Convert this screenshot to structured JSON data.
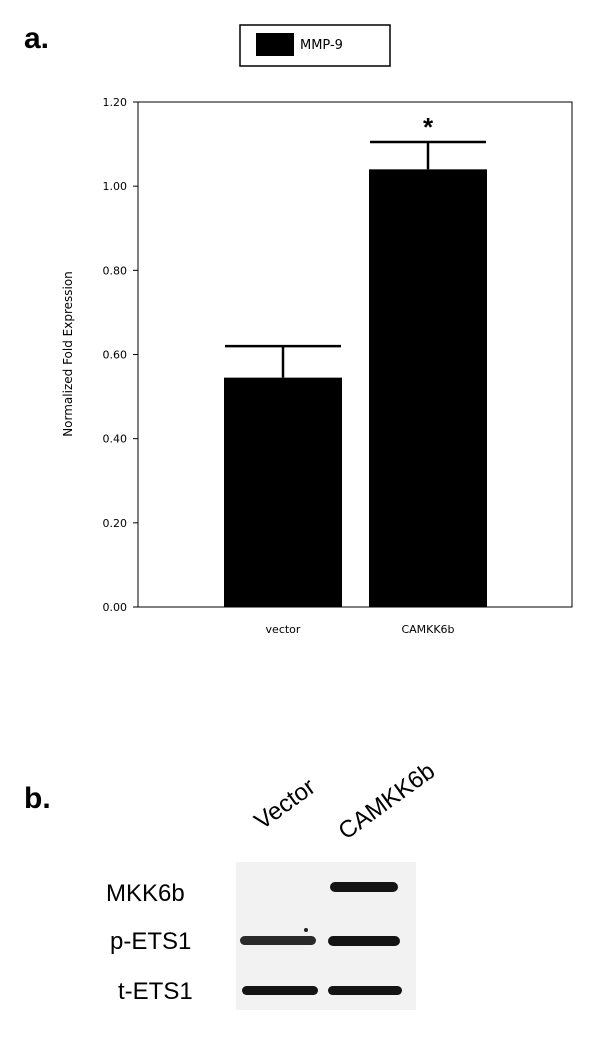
{
  "panel_a_label": "a.",
  "panel_b_label": "b.",
  "chart_data": {
    "type": "bar",
    "categories": [
      "vector",
      "CAMKK6b"
    ],
    "series": [
      {
        "name": "MMP-9",
        "values": [
          0.545,
          1.04
        ],
        "error": [
          0.075,
          0.065
        ],
        "color": "#000000"
      }
    ],
    "ylabel": "Normalized Fold Expression",
    "xlabel": "",
    "ylim": [
      0,
      1.2
    ],
    "yticks": [
      "0.00",
      "0.20",
      "0.40",
      "0.60",
      "0.80",
      "1.00",
      "1.20"
    ],
    "annotations": [
      {
        "category": "CAMKK6b",
        "text": "*"
      }
    ],
    "legend": {
      "placement": "top",
      "labels": [
        "MMP-9"
      ]
    },
    "grid": false
  },
  "blot": {
    "lanes": [
      "Vector",
      "CAMKK6b"
    ],
    "rows": [
      "MKK6b",
      "p-ETS1",
      "t-ETS1"
    ],
    "band_colors": {
      "band": "#141414",
      "background": "#f2f2f2"
    }
  }
}
